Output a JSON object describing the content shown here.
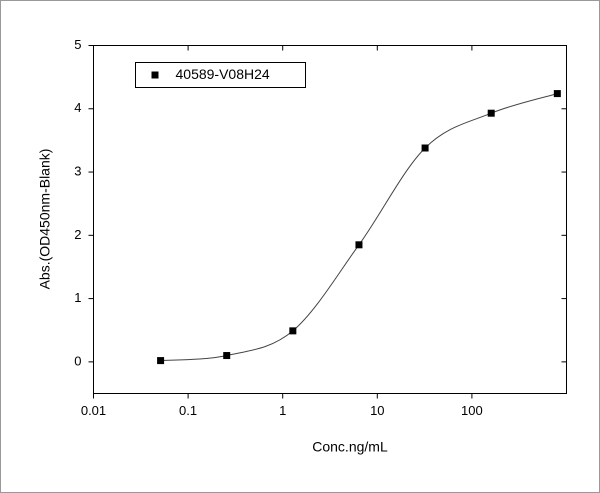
{
  "chart_data": {
    "type": "scatter",
    "x_label": "Conc.ng/mL",
    "y_label": "Abs.(OD450nm-Blank)",
    "x_scale": "log",
    "xlim": [
      0.01,
      1000
    ],
    "xticks": [
      0.01,
      0.1,
      1,
      10,
      100
    ],
    "ylim": [
      -0.5,
      5
    ],
    "yticks": [
      0,
      1,
      2,
      3,
      4,
      5
    ],
    "grid": false,
    "legend": "upper left",
    "series": [
      {
        "name": "40589-V08H24",
        "color": "#000000",
        "x": [
          0.0512,
          0.256,
          1.28,
          6.4,
          32,
          160,
          800
        ],
        "values": [
          0.02,
          0.1,
          0.49,
          1.85,
          3.38,
          3.93,
          4.24
        ]
      }
    ]
  }
}
